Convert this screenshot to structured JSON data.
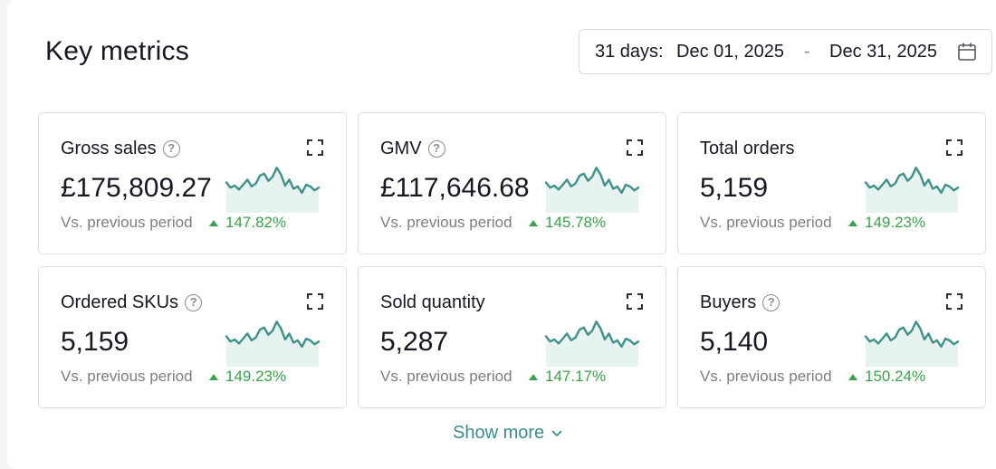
{
  "header": {
    "title": "Key metrics",
    "date_range": {
      "prefix": "31 days:",
      "start": "Dec 01, 2025",
      "separator": "-",
      "end": "Dec 31, 2025",
      "icon": "calendar-icon"
    }
  },
  "cards": [
    {
      "label": "Gross sales",
      "has_help": true,
      "value": "£175,809.27",
      "compare_label": "Vs. previous period",
      "change": "147.82%",
      "trend": "up"
    },
    {
      "label": "GMV",
      "has_help": true,
      "value": "£117,646.68",
      "compare_label": "Vs. previous period",
      "change": "145.78%",
      "trend": "up"
    },
    {
      "label": "Total orders",
      "has_help": false,
      "value": "5,159",
      "compare_label": "Vs. previous period",
      "change": "149.23%",
      "trend": "up"
    },
    {
      "label": "Ordered SKUs",
      "has_help": true,
      "value": "5,159",
      "compare_label": "Vs. previous period",
      "change": "149.23%",
      "trend": "up"
    },
    {
      "label": "Sold quantity",
      "has_help": false,
      "value": "5,287",
      "compare_label": "Vs. previous period",
      "change": "147.17%",
      "trend": "up"
    },
    {
      "label": "Buyers",
      "has_help": true,
      "value": "5,140",
      "compare_label": "Vs. previous period",
      "change": "150.24%",
      "trend": "up"
    }
  ],
  "help_glyph": "?",
  "footer": {
    "show_more_label": "Show more",
    "icon": "chevron-down-icon"
  },
  "colors": {
    "accent": "#3c8c8a",
    "positive": "#3aa24c",
    "sparkline_stroke": "#3f9189",
    "sparkline_fill": "#e6f3f1"
  }
}
